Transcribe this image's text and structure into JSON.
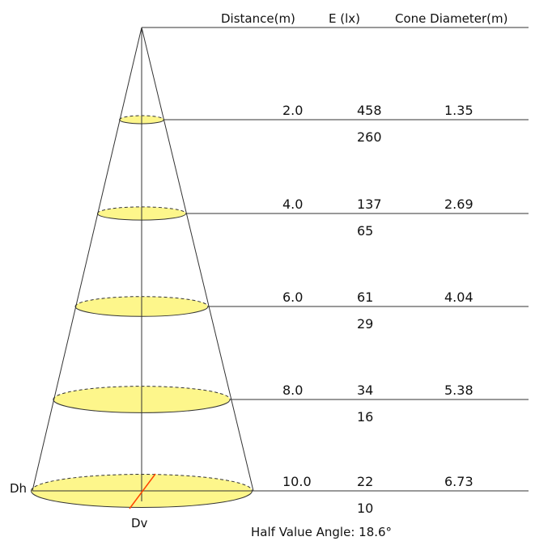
{
  "headers": {
    "distance": "Distance(m)",
    "illuminance": "E (lx)",
    "diameter": "Cone Diameter(m)"
  },
  "rows": [
    {
      "distance": "2.0",
      "e_center": "458",
      "e_edge": "260",
      "diameter": "1.35"
    },
    {
      "distance": "4.0",
      "e_center": "137",
      "e_edge": "65",
      "diameter": "2.69"
    },
    {
      "distance": "6.0",
      "e_center": "61",
      "e_edge": "29",
      "diameter": "4.04"
    },
    {
      "distance": "8.0",
      "e_center": "34",
      "e_edge": "16",
      "diameter": "5.38"
    },
    {
      "distance": "10.0",
      "e_center": "22",
      "e_edge": "10",
      "diameter": "6.73"
    }
  ],
  "labels": {
    "dh": "Dh",
    "dv": "Dv",
    "half_angle": "Half Value Angle: 18.6°"
  },
  "colors": {
    "ellipse_fill": "#fdf68b",
    "line": "#333333",
    "dv_line": "#ff4500"
  }
}
